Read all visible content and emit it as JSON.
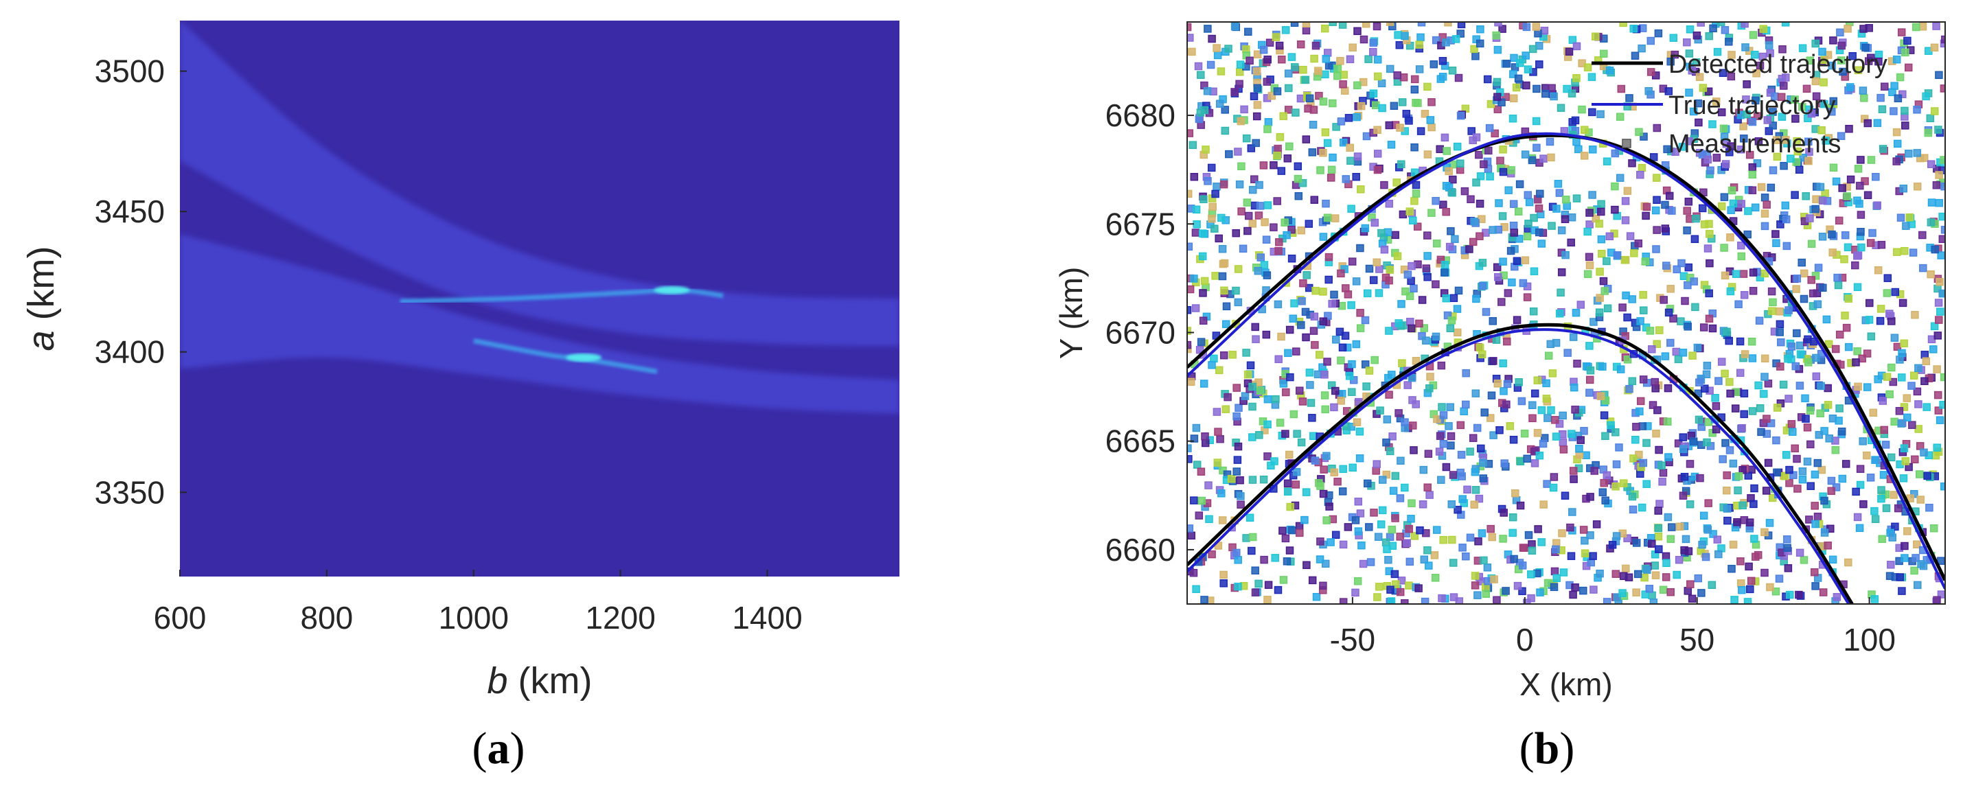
{
  "chart_data": [
    {
      "id": "a",
      "type": "heatmap",
      "panel_label": "a",
      "xlabel_var": "b",
      "xlabel_unit": " (km)",
      "ylabel_var": "a",
      "ylabel_unit": " (km)",
      "xlim": [
        600,
        1580
      ],
      "ylim": [
        3320,
        3518
      ],
      "xticks": [
        600,
        800,
        1000,
        1200,
        1400
      ],
      "yticks": [
        3350,
        3400,
        3450,
        3500
      ],
      "colors": {
        "background": "#3a2aa6",
        "band": "#4a48d8",
        "ridge": "#3f9fea",
        "peak": "#54e6ee"
      },
      "bands": [
        {
          "label": "upper-curve",
          "upper": [
            [
              600,
              3518
            ],
            [
              800,
              3472
            ],
            [
              1000,
              3442
            ],
            [
              1200,
              3426
            ],
            [
              1400,
              3420
            ],
            [
              1580,
              3419
            ]
          ],
          "lower": [
            [
              600,
              3468
            ],
            [
              800,
              3440
            ],
            [
              1000,
              3418
            ],
            [
              1200,
              3407
            ],
            [
              1400,
              3403
            ],
            [
              1580,
              3402
            ]
          ]
        },
        {
          "label": "lower-curve",
          "upper": [
            [
              600,
              3442
            ],
            [
              800,
              3428
            ],
            [
              1000,
              3412
            ],
            [
              1200,
              3400
            ],
            [
              1400,
              3393
            ],
            [
              1580,
              3390
            ]
          ],
          "lower": [
            [
              600,
              3394
            ],
            [
              800,
              3398
            ],
            [
              1000,
              3392
            ],
            [
              1200,
              3385
            ],
            [
              1400,
              3380
            ],
            [
              1580,
              3378
            ]
          ]
        }
      ],
      "ridges": [
        {
          "points": [
            [
              900,
              3418
            ],
            [
              1050,
              3419
            ],
            [
              1200,
              3421
            ],
            [
              1280,
              3422
            ],
            [
              1340,
              3420
            ]
          ]
        },
        {
          "points": [
            [
              1000,
              3404
            ],
            [
              1100,
              3399
            ],
            [
              1160,
              3397
            ],
            [
              1250,
              3393
            ]
          ]
        }
      ],
      "peaks": [
        [
          1270,
          3422
        ],
        [
          1150,
          3398
        ]
      ]
    },
    {
      "id": "b",
      "type": "scatter",
      "panel_label": "b",
      "xlabel": "X (km)",
      "ylabel": "Y (km)",
      "xlim": [
        -98,
        122
      ],
      "ylim": [
        6657.5,
        6684.3
      ],
      "xticks": [
        -50,
        0,
        50,
        100
      ],
      "yticks": [
        6660,
        6665,
        6670,
        6675,
        6680
      ],
      "legend": {
        "position": "top-right",
        "entries": [
          {
            "label": "Detected trajectory",
            "style": "line",
            "color": "#000000"
          },
          {
            "label": "True trajectory",
            "style": "line",
            "color": "#1f1fd0"
          },
          {
            "label": "Measurements",
            "style": "marker",
            "color": "#888888"
          }
        ]
      },
      "series": [
        {
          "name": "Detected trajectory 1",
          "kind": "line",
          "color": "#000000",
          "points": [
            [
              -98,
              6668.4
            ],
            [
              -60,
              6673.8
            ],
            [
              -30,
              6677.3
            ],
            [
              0,
              6679.0
            ],
            [
              30,
              6678.4
            ],
            [
              60,
              6675.0
            ],
            [
              90,
              6668.6
            ],
            [
              122,
              6658.6
            ]
          ]
        },
        {
          "name": "True trajectory 1",
          "kind": "line",
          "color": "#1f1fd0",
          "points": [
            [
              -98,
              6668.0
            ],
            [
              -60,
              6673.6
            ],
            [
              -30,
              6677.2
            ],
            [
              0,
              6679.1
            ],
            [
              30,
              6678.3
            ],
            [
              60,
              6674.8
            ],
            [
              90,
              6668.3
            ],
            [
              122,
              6658.2
            ]
          ]
        },
        {
          "name": "Detected trajectory 2",
          "kind": "line",
          "color": "#000000",
          "points": [
            [
              -98,
              6659.3
            ],
            [
              -60,
              6665.0
            ],
            [
              -30,
              6668.6
            ],
            [
              0,
              6670.3
            ],
            [
              30,
              6669.5
            ],
            [
              60,
              6665.4
            ],
            [
              80,
              6661.3
            ],
            [
              95,
              6657.5
            ]
          ]
        },
        {
          "name": "True trajectory 2",
          "kind": "line",
          "color": "#1f1fd0",
          "points": [
            [
              -98,
              6659.0
            ],
            [
              -60,
              6664.8
            ],
            [
              -30,
              6668.4
            ],
            [
              0,
              6670.1
            ],
            [
              30,
              6669.2
            ],
            [
              60,
              6665.1
            ],
            [
              80,
              6661.0
            ],
            [
              94,
              6657.5
            ]
          ]
        }
      ],
      "measurements": {
        "count": 2600,
        "seed": 20240611,
        "palette": [
          "#1d2bb8",
          "#4b1c8c",
          "#27a9e6",
          "#6fd36b",
          "#2fb7b0",
          "#8a6ad6",
          "#a13f7b",
          "#4f83e3",
          "#1fc6d8",
          "#b4d23c",
          "#6a2c92",
          "#3a9ad9",
          "#d6b36a",
          "#1f5fb8"
        ]
      }
    }
  ]
}
